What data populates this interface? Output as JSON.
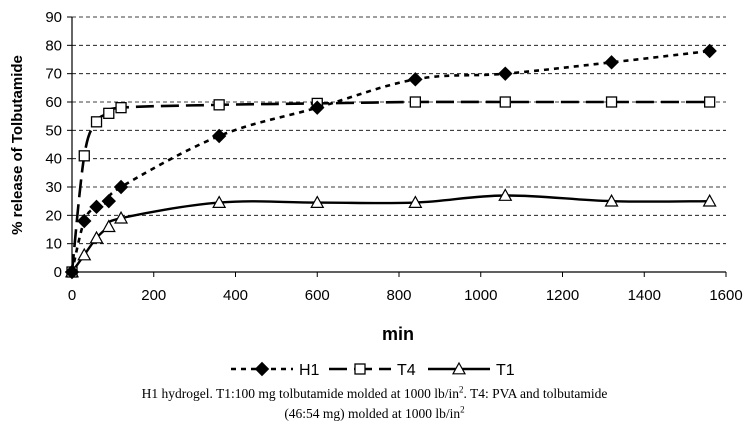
{
  "chart_data": {
    "type": "line",
    "xlabel": "min",
    "ylabel": "% release of Tolbutamide",
    "xlim": [
      0,
      1600
    ],
    "ylim": [
      0,
      90
    ],
    "xticks": [
      0,
      200,
      400,
      600,
      800,
      1000,
      1200,
      1400,
      1600
    ],
    "yticks": [
      0,
      10,
      20,
      30,
      40,
      50,
      60,
      70,
      80,
      90
    ],
    "grid": "horizontal dashed",
    "legend": "bottom",
    "series": [
      {
        "name": "H1",
        "marker": "filled-diamond",
        "line": "dotted",
        "color": "#000000",
        "x": [
          0,
          30,
          60,
          90,
          120,
          360,
          600,
          840,
          1060,
          1320,
          1560
        ],
        "y": [
          0,
          18,
          23,
          25,
          30,
          48,
          58,
          68,
          70,
          74,
          78
        ]
      },
      {
        "name": "T4",
        "marker": "open-square",
        "line": "long-dash",
        "color": "#000000",
        "x": [
          0,
          30,
          60,
          90,
          120,
          360,
          600,
          840,
          1060,
          1320,
          1560
        ],
        "y": [
          0,
          41,
          53,
          56,
          58,
          59,
          59.5,
          60,
          60,
          60,
          60
        ]
      },
      {
        "name": "T1",
        "marker": "open-triangle",
        "line": "solid",
        "color": "#000000",
        "x": [
          0,
          30,
          60,
          90,
          120,
          360,
          600,
          840,
          1060,
          1320,
          1560
        ],
        "y": [
          0,
          6,
          12,
          16,
          19,
          24.5,
          24.5,
          24.5,
          27,
          25,
          25
        ]
      }
    ]
  },
  "caption": {
    "line1_part1": "H1 hydrogel. T1:100 mg tolbutamide molded at 1000 lb/in",
    "line1_sup": "2",
    "line1_part2": ". T4: PVA and tolbutamide",
    "line2_part1": "(46:54 mg) molded at 1000 lb/in",
    "line2_sup": "2"
  }
}
